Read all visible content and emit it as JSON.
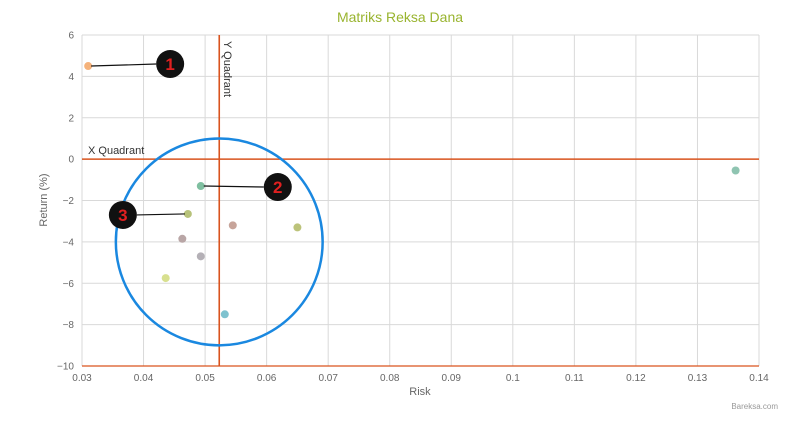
{
  "chart_data": {
    "type": "scatter",
    "title": "Matriks Reksa Dana",
    "xlabel": "Risk",
    "ylabel": "Return (%)",
    "xlim": [
      0.03,
      0.14
    ],
    "ylim": [
      -10,
      6
    ],
    "x_ticks": [
      0.03,
      0.04,
      0.05,
      0.06,
      0.07,
      0.08,
      0.09,
      0.1,
      0.11,
      0.12,
      0.13,
      0.14
    ],
    "y_ticks": [
      -10,
      -8,
      -6,
      -4,
      -2,
      0,
      2,
      4,
      6
    ],
    "grid": true,
    "quadrant_lines": {
      "x_quadrant": {
        "label": "X Quadrant",
        "y": 0
      },
      "y_quadrant": {
        "label": "Y Quadrant",
        "x": 0.0523
      }
    },
    "points": [
      {
        "x": 0.031,
        "y": 4.5,
        "color": "#f5b27a"
      },
      {
        "x": 0.0493,
        "y": -1.3,
        "color": "#7fbfa0"
      },
      {
        "x": 0.0472,
        "y": -2.65,
        "color": "#b7c27a"
      },
      {
        "x": 0.0545,
        "y": -3.2,
        "color": "#c7a49a"
      },
      {
        "x": 0.0463,
        "y": -3.85,
        "color": "#b9a6a6"
      },
      {
        "x": 0.0493,
        "y": -4.7,
        "color": "#b4b0b6"
      },
      {
        "x": 0.0436,
        "y": -5.75,
        "color": "#d8e08f"
      },
      {
        "x": 0.065,
        "y": -3.3,
        "color": "#bcc37a"
      },
      {
        "x": 0.0532,
        "y": -7.5,
        "color": "#7ec2cf"
      },
      {
        "x": 0.1362,
        "y": -0.55,
        "color": "#8fc4b1"
      }
    ],
    "annotations": [
      {
        "label": "1",
        "point_index": 0
      },
      {
        "label": "2",
        "point_index": 1
      },
      {
        "label": "3",
        "point_index": 2
      }
    ],
    "highlight_circle": {
      "center": {
        "x": 0.0523,
        "y": -4.0
      },
      "radius_x_units": 0.0168,
      "radius_y_units": 5.0,
      "color": "#1a88e0"
    }
  },
  "colors": {
    "title": "#99b42f",
    "quadrant_line": "#d9531e",
    "grid": "#d9d9d9",
    "axis_text": "#666666",
    "badge_fill": "#111111",
    "badge_text": "#e02020"
  },
  "credit": "Bareksa.com"
}
